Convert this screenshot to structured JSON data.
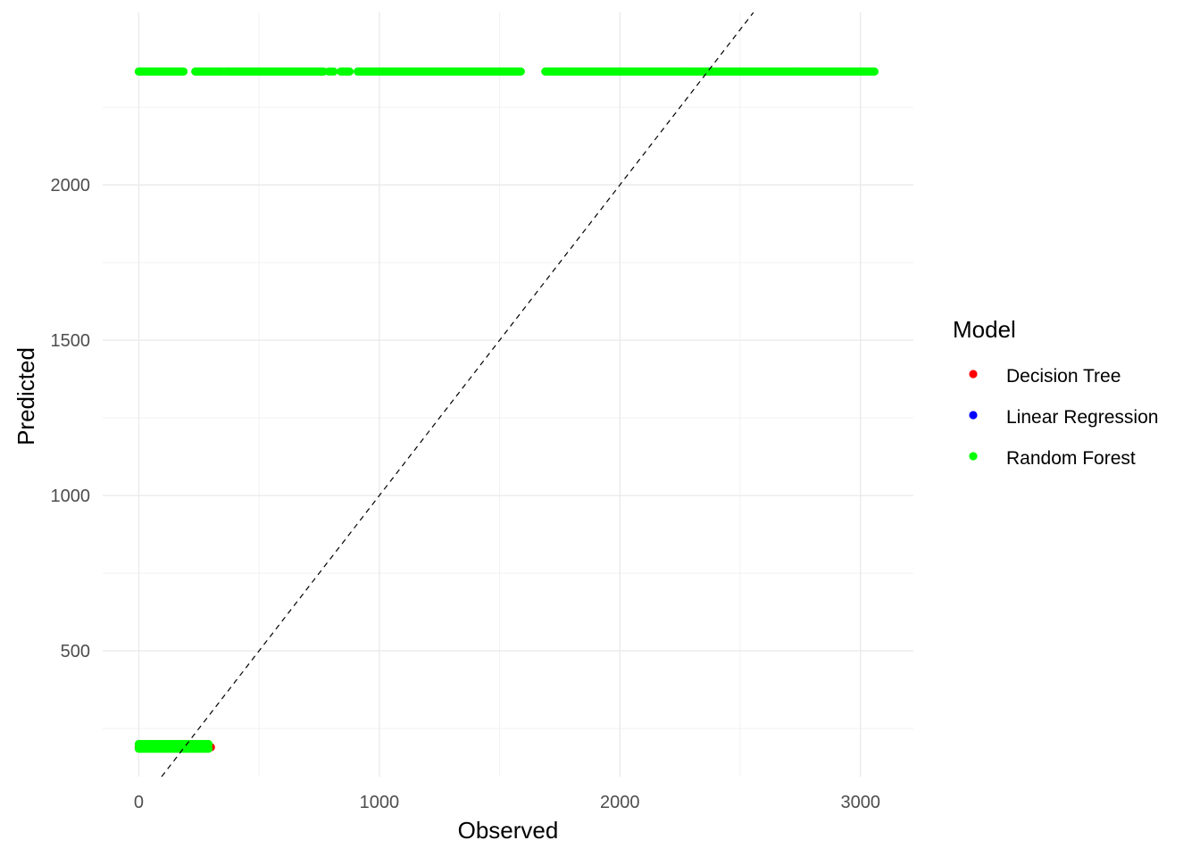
{
  "chart_data": {
    "type": "scatter",
    "title": "",
    "xlabel": "Observed",
    "ylabel": "Predicted",
    "xlim": [
      -150,
      3220
    ],
    "ylim": [
      95,
      2555
    ],
    "x_ticks": [
      0,
      1000,
      2000,
      3000
    ],
    "x_tick_labels": [
      "0",
      "1000",
      "2000",
      "3000"
    ],
    "y_ticks": [
      500,
      1000,
      1500,
      2000
    ],
    "y_tick_labels": [
      "500",
      "1000",
      "1500",
      "2000"
    ],
    "grid": true,
    "legend": {
      "title": "Model",
      "position": "right"
    },
    "reference_line": {
      "style": "dashed",
      "color": "#000000",
      "slope": 1,
      "intercept": 0
    },
    "series": [
      {
        "name": "Decision Tree",
        "color": "#ff0000",
        "segments": [
          {
            "x_start": 0,
            "x_end": 300,
            "y": 190,
            "step": 6
          }
        ]
      },
      {
        "name": "Linear Regression",
        "color": "#0000ff",
        "segments": []
      },
      {
        "name": "Random Forest",
        "color": "#00ff00",
        "segments": [
          {
            "x_start": 0,
            "x_end": 190,
            "y": 2365,
            "step": 6
          },
          {
            "x_start": 235,
            "x_end": 350,
            "y": 2365,
            "step": 6
          },
          {
            "x_start": 360,
            "x_end": 770,
            "y": 2365,
            "step": 6
          },
          {
            "x_start": 790,
            "x_end": 810,
            "y": 2365,
            "step": 10
          },
          {
            "x_start": 840,
            "x_end": 880,
            "y": 2365,
            "step": 6
          },
          {
            "x_start": 910,
            "x_end": 1590,
            "y": 2365,
            "step": 6
          },
          {
            "x_start": 1690,
            "x_end": 3060,
            "y": 2365,
            "step": 6
          },
          {
            "x_start": 0,
            "x_end": 290,
            "y": 185,
            "step": 5
          },
          {
            "x_start": 0,
            "x_end": 290,
            "y": 200,
            "step": 5
          }
        ]
      }
    ]
  }
}
